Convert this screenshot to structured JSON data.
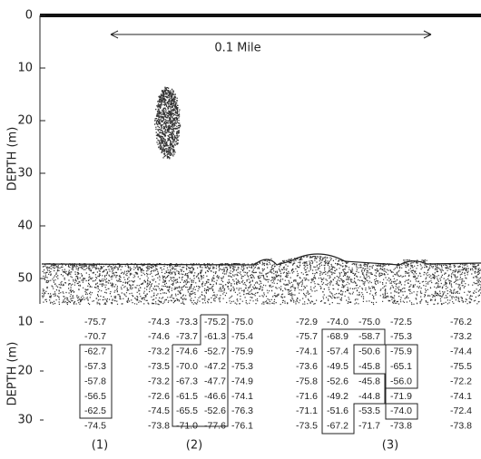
{
  "echogram": {
    "ylabel": "DEPTH (m)",
    "yticks": [
      0,
      10,
      20,
      30,
      40,
      50
    ],
    "scale_label": "0.1 Mile"
  },
  "tables": {
    "ylabel": "DEPTH (m)",
    "yticks": [
      10,
      20,
      30
    ],
    "groups": [
      {
        "label": "(1)",
        "rows": [
          [
            "-75.7"
          ],
          [
            "-70.7"
          ],
          [
            "-62.7"
          ],
          [
            "-57.3"
          ],
          [
            "-57.8"
          ],
          [
            "-56.5"
          ],
          [
            "-62.5"
          ],
          [
            "-74.5"
          ]
        ]
      },
      {
        "label": "(2)",
        "rows": [
          [
            "-74.3",
            "-73.3",
            "-75.2",
            "-75.0"
          ],
          [
            "-74.6",
            "-73.7",
            "-61.3",
            "-75.4"
          ],
          [
            "-73.2",
            "-74.6",
            "-52.7",
            "-75.9"
          ],
          [
            "-73.5",
            "-70.0",
            "-47.2",
            "-75.3"
          ],
          [
            "-73.2",
            "-67.3",
            "-47.7",
            "-74.9"
          ],
          [
            "-72.6",
            "-61.5",
            "-46.6",
            "-74.1"
          ],
          [
            "-74.5",
            "-65.5",
            "-52.6",
            "-76.3"
          ],
          [
            "-73.8",
            "-71.0",
            "-77.6",
            "-76.1"
          ]
        ]
      },
      {
        "label": "(3)",
        "rows": [
          [
            "-72.9",
            "-74.0",
            "-75.0",
            "-72.5",
            "-76.2"
          ],
          [
            "-75.7",
            "-68.9",
            "-58.7",
            "-75.3",
            "-73.2"
          ],
          [
            "-74.1",
            "-57.4",
            "-50.6",
            "-75.9",
            "-74.4"
          ],
          [
            "-73.6",
            "-49.5",
            "-45.8",
            "-65.1",
            "-75.5"
          ],
          [
            "-75.8",
            "-52.6",
            "-45.8",
            "-56.0",
            "-72.2"
          ],
          [
            "-71.6",
            "-49.2",
            "-44.8",
            "-71.9",
            "-74.1"
          ],
          [
            "-71.1",
            "-51.6",
            "-53.5",
            "-74.0",
            "-72.4"
          ],
          [
            "-73.5",
            "-67.2",
            "-71.7",
            "-73.8",
            "-73.8"
          ]
        ]
      }
    ]
  }
}
